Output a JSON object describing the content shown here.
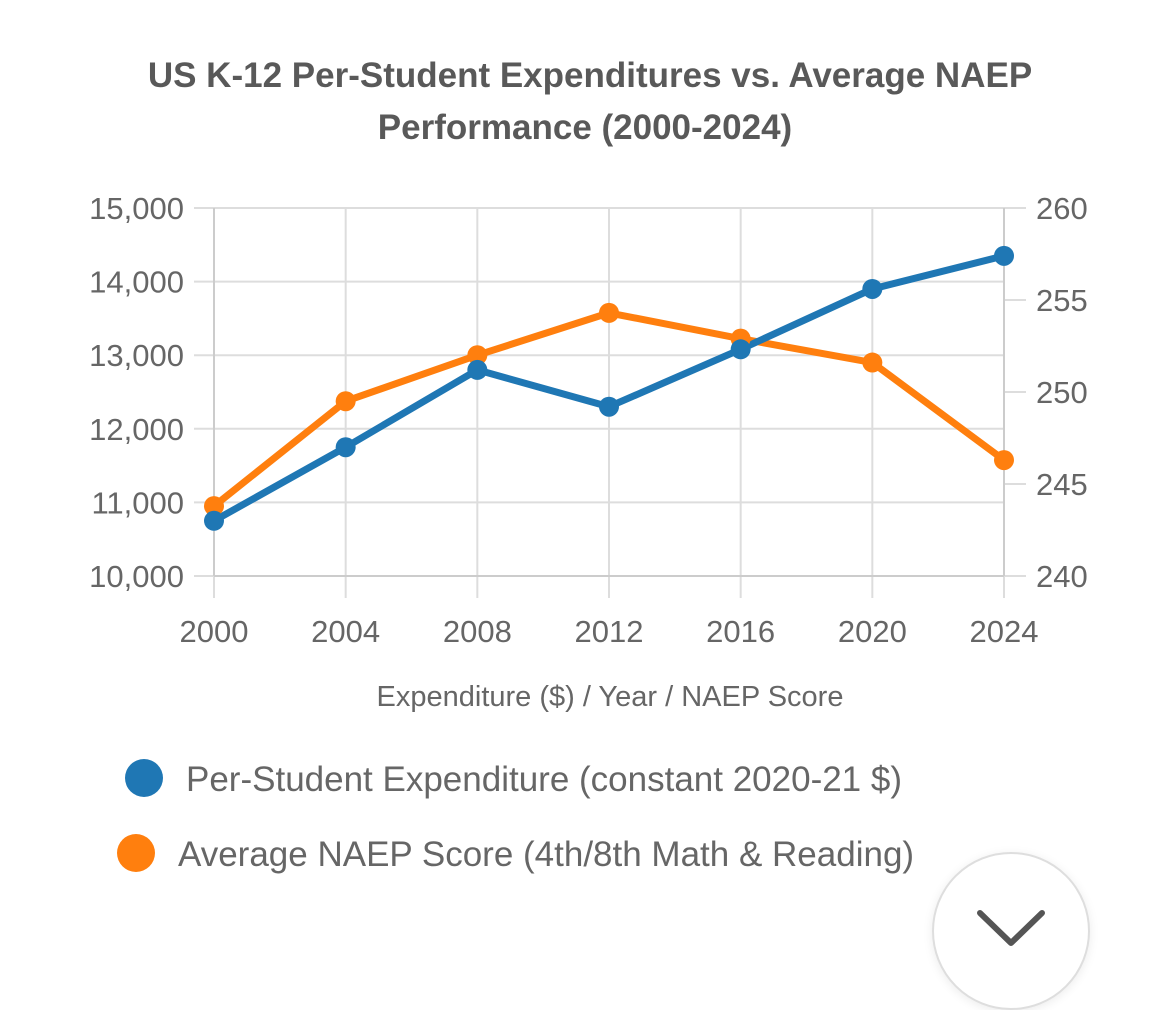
{
  "chart_data": {
    "type": "line",
    "title_lines": [
      "US K-12 Per-Student Expenditures vs. Average NAEP",
      "Performance (2000-2024)"
    ],
    "title": "US K-12 Per-Student Expenditures vs. Average NAEP Performance (2000-2024)",
    "xlabel": "Expenditure ($) / Year / NAEP Score",
    "x": [
      "2000",
      "2004",
      "2008",
      "2012",
      "2016",
      "2020",
      "2024"
    ],
    "y_left": {
      "ylim": [
        10000,
        15000
      ],
      "ticks": [
        10000,
        11000,
        12000,
        13000,
        14000,
        15000
      ],
      "tick_labels": [
        "10,000",
        "11,000",
        "12,000",
        "13,000",
        "14,000",
        "15,000"
      ]
    },
    "y_right": {
      "ylim": [
        240,
        260
      ],
      "ticks": [
        240,
        245,
        250,
        255,
        260
      ],
      "tick_labels": [
        "240",
        "245",
        "250",
        "255",
        "260"
      ]
    },
    "grid": true,
    "legend_position": "bottom",
    "series": [
      {
        "name": "Per-Student Expenditure (constant 2020-21 $)",
        "axis": "left",
        "color": "#1f77b4",
        "values": [
          10750,
          11750,
          12800,
          12300,
          13080,
          13900,
          14350
        ]
      },
      {
        "name": "Average NAEP Score (4th/8th Math & Reading)",
        "axis": "right",
        "color": "#ff7f0e",
        "values": [
          243.8,
          249.5,
          252.0,
          254.3,
          252.9,
          251.6,
          246.3
        ]
      }
    ]
  },
  "ui": {
    "scroll_icon": "chevron-down-icon"
  }
}
